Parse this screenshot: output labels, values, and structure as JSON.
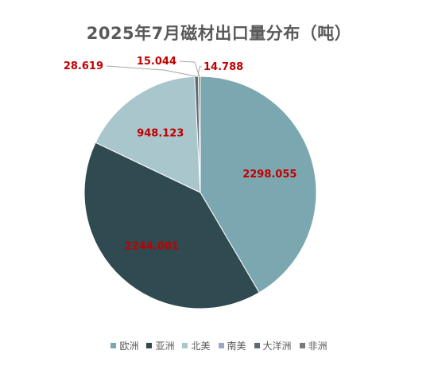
{
  "chart_data": {
    "type": "pie",
    "title": "2025年7月磁材出口量分布（吨）",
    "categories": [
      "欧洲",
      "亚洲",
      "北美",
      "南美",
      "大洋洲",
      "非洲"
    ],
    "values": [
      2298.055,
      2244.001,
      948.123,
      0,
      28.619,
      15.044
    ],
    "data_labels": [
      "2298.055",
      "2244.001",
      "948.123",
      "",
      "28.619",
      "15.044"
    ],
    "extra_label": "14.788",
    "colors": [
      "#7ba7b0",
      "#2f4a50",
      "#a9c6cc",
      "#9aa8c8",
      "#5d6b70",
      "#7a7a7a"
    ],
    "label_color": "#c00000",
    "legend_position": "bottom"
  }
}
